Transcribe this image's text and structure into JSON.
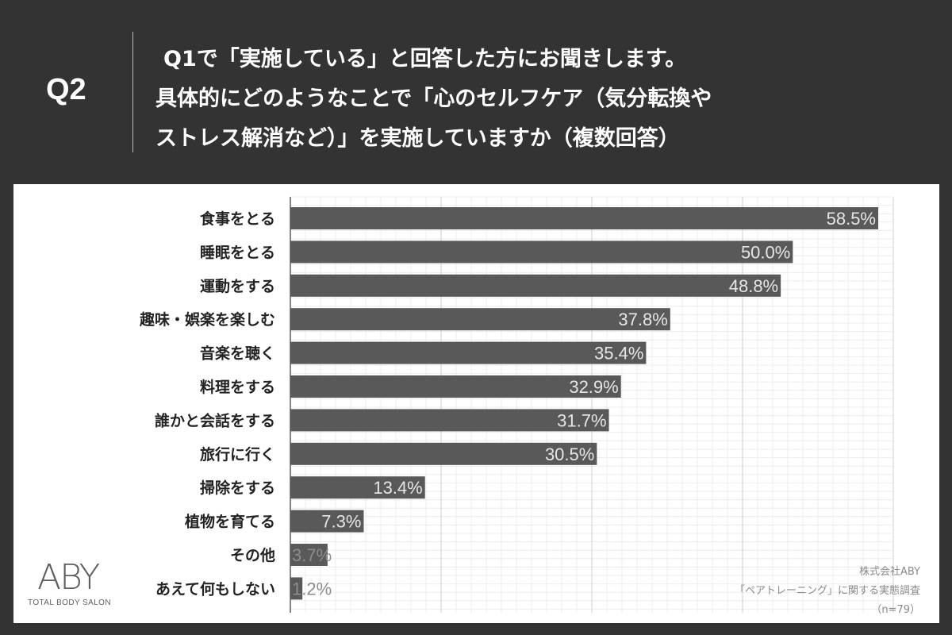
{
  "header": {
    "label": "Q2",
    "lines": [
      "Q1で「実施している」と回答した方にお聞きします。",
      "具体的にどのようなことで「心のセルフケア（気分転換や",
      "ストレス解消など）」を実施していますか（複数回答）"
    ]
  },
  "colors": {
    "background": "#333333",
    "bar": "#595959",
    "value_label": "#e6e6e6",
    "value_label_outside": "#8c8c8c",
    "grid": "#ececec"
  },
  "chart_data": {
    "type": "bar",
    "orientation": "horizontal",
    "categories": [
      "食事をとる",
      "睡眠をとる",
      "運動をする",
      "趣味・娯楽を楽しむ",
      "音楽を聴く",
      "料理をする",
      "誰かと会話をする",
      "旅行に行く",
      "掃除をする",
      "植物を育てる",
      "その他",
      "あえて何もしない"
    ],
    "values": [
      58.5,
      50.0,
      48.8,
      37.8,
      35.4,
      32.9,
      31.7,
      30.5,
      13.4,
      7.3,
      3.7,
      1.2
    ],
    "value_labels": [
      "58.5%",
      "50.0%",
      "48.8%",
      "37.8%",
      "35.4%",
      "32.9%",
      "31.7%",
      "30.5%",
      "13.4%",
      "7.3%",
      "3.7%",
      "1.2%"
    ],
    "xlim": [
      0,
      60
    ],
    "major_gridlines": [
      0,
      15,
      30,
      45,
      60
    ],
    "grid": true,
    "legend": "none"
  },
  "logo": {
    "word": "ABY",
    "tagline": "TOTAL BODY SALON"
  },
  "source": {
    "company": "株式会社ABY",
    "survey": "「ペアトレーニング」に関する実態調査",
    "sample": "（n=79）"
  }
}
